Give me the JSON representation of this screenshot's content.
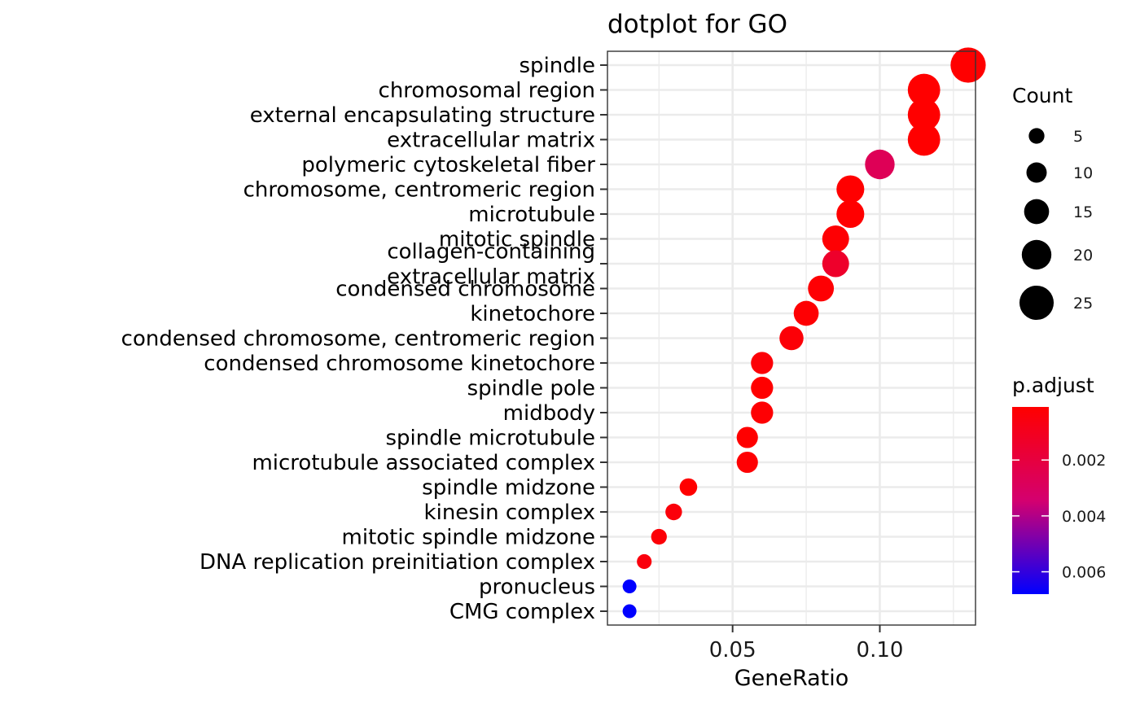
{
  "chart_data": {
    "type": "scatter",
    "title": "dotplot for GO",
    "xlabel": "GeneRatio",
    "ylabel": "",
    "xlim": [
      0.0075,
      0.1325
    ],
    "xticks": [
      0.05,
      0.1
    ],
    "xtick_labels": [
      "0.05",
      "0.10"
    ],
    "grid": true,
    "points": [
      {
        "term": "spindle",
        "gene_ratio": 0.13,
        "count": 26,
        "p_adjust": 0.0001
      },
      {
        "term": "chromosomal region",
        "gene_ratio": 0.115,
        "count": 23,
        "p_adjust": 0.0001
      },
      {
        "term": "external encapsulating structure",
        "gene_ratio": 0.115,
        "count": 23,
        "p_adjust": 0.0001
      },
      {
        "term": "extracellular matrix",
        "gene_ratio": 0.115,
        "count": 23,
        "p_adjust": 0.0001
      },
      {
        "term": "polymeric cytoskeletal fiber",
        "gene_ratio": 0.1,
        "count": 20,
        "p_adjust": 0.0027
      },
      {
        "term": "chromosome, centromeric region",
        "gene_ratio": 0.09,
        "count": 18,
        "p_adjust": 0.0001
      },
      {
        "term": "microtubule",
        "gene_ratio": 0.09,
        "count": 18,
        "p_adjust": 0.0001
      },
      {
        "term": "mitotic spindle",
        "gene_ratio": 0.085,
        "count": 17,
        "p_adjust": 0.0002
      },
      {
        "term": "collagen-containing\nextracellular matrix",
        "gene_ratio": 0.085,
        "count": 17,
        "p_adjust": 0.0014
      },
      {
        "term": "condensed chromosome",
        "gene_ratio": 0.08,
        "count": 16,
        "p_adjust": 0.0002
      },
      {
        "term": "kinetochore",
        "gene_ratio": 0.075,
        "count": 15,
        "p_adjust": 0.0002
      },
      {
        "term": "condensed chromosome, centromeric region",
        "gene_ratio": 0.07,
        "count": 14,
        "p_adjust": 0.0003
      },
      {
        "term": "condensed chromosome kinetochore",
        "gene_ratio": 0.06,
        "count": 12,
        "p_adjust": 0.0003
      },
      {
        "term": "spindle pole",
        "gene_ratio": 0.06,
        "count": 12,
        "p_adjust": 0.0001
      },
      {
        "term": "midbody",
        "gene_ratio": 0.06,
        "count": 12,
        "p_adjust": 0.0002
      },
      {
        "term": "spindle microtubule",
        "gene_ratio": 0.055,
        "count": 11,
        "p_adjust": 0.0001
      },
      {
        "term": "microtubule associated complex",
        "gene_ratio": 0.055,
        "count": 11,
        "p_adjust": 0.0002
      },
      {
        "term": "spindle midzone",
        "gene_ratio": 0.035,
        "count": 7,
        "p_adjust": 0.0001
      },
      {
        "term": "kinesin complex",
        "gene_ratio": 0.03,
        "count": 6,
        "p_adjust": 0.0004
      },
      {
        "term": "mitotic spindle midzone",
        "gene_ratio": 0.025,
        "count": 5,
        "p_adjust": 0.0003
      },
      {
        "term": "DNA replication preinitiation complex",
        "gene_ratio": 0.02,
        "count": 4,
        "p_adjust": 0.0005
      },
      {
        "term": "pronucleus",
        "gene_ratio": 0.015,
        "count": 3,
        "p_adjust": 0.0068
      },
      {
        "term": "CMG complex",
        "gene_ratio": 0.015,
        "count": 3,
        "p_adjust": 0.0068
      }
    ],
    "size_legend": {
      "title": "Count",
      "values": [
        5,
        10,
        15,
        20,
        25
      ],
      "labels": [
        "5",
        "10",
        "15",
        "20",
        "25"
      ]
    },
    "color_legend": {
      "title": "p.adjust",
      "range": [
        0.0001,
        0.0068
      ],
      "breaks": [
        0.002,
        0.004,
        0.006
      ],
      "labels": [
        "0.002",
        "0.004",
        "0.006"
      ],
      "low_color": "#ff0000",
      "high_color": "#0000ff"
    },
    "colors": {
      "low": "#ff0000",
      "high": "#0000ff",
      "point_legend": "#000000",
      "grid": "#ebebeb",
      "panel_border": "#333333"
    }
  }
}
